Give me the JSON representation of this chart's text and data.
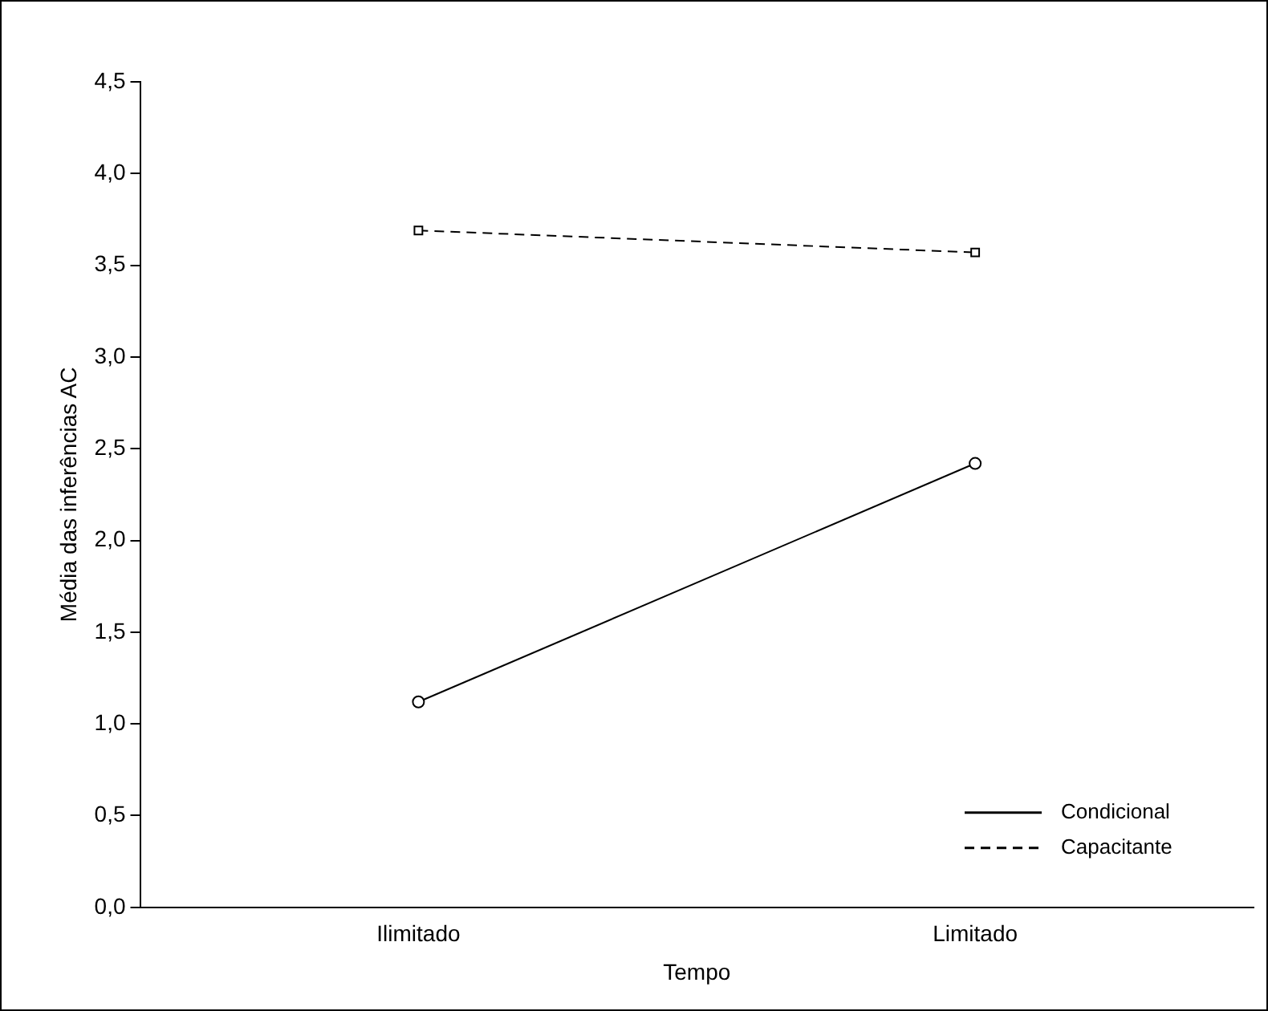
{
  "chart_data": {
    "type": "line",
    "xlabel": "Tempo",
    "ylabel": "Média das inferências AC",
    "categories": [
      "Ilimitado",
      "Limitado"
    ],
    "series": [
      {
        "name": "Condicional",
        "color": "#000000",
        "values": [
          1.12,
          2.42
        ],
        "marker": "circle",
        "line_style": "solid"
      },
      {
        "name": "Capacitante",
        "color": "#000000",
        "values": [
          3.69,
          3.57
        ],
        "marker": "square",
        "line_style": "dashed"
      }
    ],
    "ylim": [
      0,
      4.5
    ],
    "yticks": [
      {
        "value": 0,
        "label": "0,0"
      },
      {
        "value": 0.5,
        "label": "0,5"
      },
      {
        "value": 1,
        "label": "1,0"
      },
      {
        "value": 1.5,
        "label": "1,5"
      },
      {
        "value": 2,
        "label": "2,0"
      },
      {
        "value": 2.5,
        "label": "2,5"
      },
      {
        "value": 3,
        "label": "3,0"
      },
      {
        "value": 3.5,
        "label": "3,5"
      },
      {
        "value": 4,
        "label": "4,0"
      },
      {
        "value": 4.5,
        "label": "4,5"
      }
    ],
    "grid": false,
    "legend": "bottom right"
  }
}
